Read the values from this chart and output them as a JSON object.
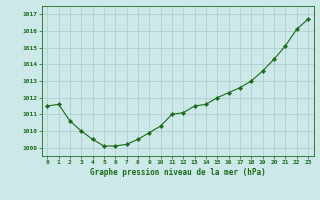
{
  "hours": [
    0,
    1,
    2,
    3,
    4,
    5,
    6,
    7,
    8,
    9,
    10,
    11,
    12,
    13,
    14,
    15,
    16,
    17,
    18,
    19,
    20,
    21,
    22,
    23
  ],
  "pressure": [
    1011.5,
    1011.6,
    1010.6,
    1010.0,
    1009.5,
    1009.1,
    1009.1,
    1009.2,
    1009.5,
    1009.9,
    1010.3,
    1011.0,
    1011.1,
    1011.5,
    1011.6,
    1012.0,
    1012.3,
    1012.6,
    1013.0,
    1013.6,
    1014.3,
    1015.1,
    1016.1,
    1016.7
  ],
  "line_color": "#1a6b1a",
  "marker": "D",
  "marker_size": 2.2,
  "bg_color": "#cce8e8",
  "grid_color": "#aacccc",
  "xlabel": "Graphe pression niveau de la mer (hPa)",
  "xlabel_color": "#1a6b1a",
  "tick_color": "#1a6b1a",
  "axis_color": "#1a6b1a",
  "ylim": [
    1008.5,
    1017.5
  ],
  "yticks": [
    1009,
    1010,
    1011,
    1012,
    1013,
    1014,
    1015,
    1016,
    1017
  ],
  "xlim": [
    -0.5,
    23.5
  ],
  "figwidth": 3.2,
  "figheight": 2.0,
  "dpi": 100
}
